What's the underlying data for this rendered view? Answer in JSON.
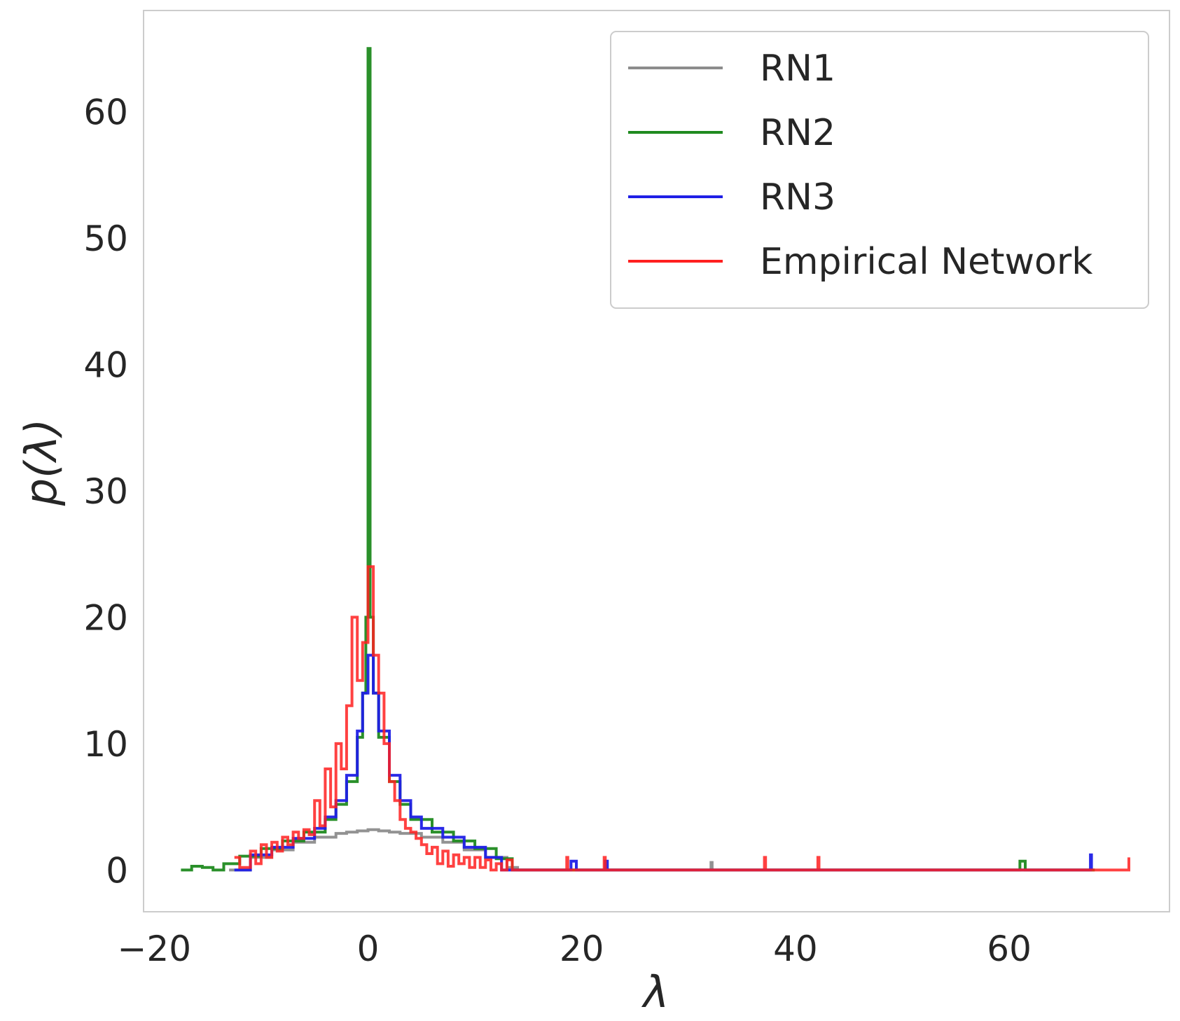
{
  "chart_data": {
    "type": "line",
    "title": "",
    "xlabel": "λ",
    "ylabel": "p(λ)",
    "xlim": [
      -21,
      75
    ],
    "ylim": [
      -3.3,
      68
    ],
    "xticks": [
      -20,
      0,
      20,
      40,
      60
    ],
    "xtick_labels": [
      "−20",
      "0",
      "20",
      "40",
      "60"
    ],
    "yticks": [
      0,
      10,
      20,
      30,
      40,
      50,
      60
    ],
    "ytick_labels": [
      "0",
      "10",
      "20",
      "30",
      "40",
      "50",
      "60"
    ],
    "grid": false,
    "legend_position": "top-right",
    "series": [
      {
        "name": "RN1",
        "color": "#8c8c8c",
        "x": [
          -13,
          -11,
          -9,
          -7,
          -5,
          -3,
          -2,
          -1,
          0,
          1,
          2,
          3,
          5,
          7,
          9,
          11,
          13,
          14,
          32,
          32.1,
          32.2,
          68
        ],
        "y": [
          0,
          1.0,
          1.6,
          2.2,
          2.6,
          2.9,
          3.0,
          3.1,
          3.2,
          3.1,
          3.0,
          2.9,
          2.6,
          2.2,
          1.6,
          1.0,
          0.2,
          0,
          0,
          0.6,
          0,
          0
        ]
      },
      {
        "name": "RN2",
        "color": "#1f8a1f",
        "x": [
          -17.5,
          -16.5,
          -15.5,
          -14.5,
          -13.5,
          -12,
          -10,
          -8,
          -6,
          -4,
          -3,
          -2,
          -1,
          -0.5,
          -0.2,
          0,
          0.2,
          0.5,
          1,
          2,
          3,
          4,
          6,
          8,
          10,
          12,
          13.5,
          60.5,
          61,
          61.5,
          68
        ],
        "y": [
          0,
          0.3,
          0.2,
          0,
          0.5,
          1.1,
          1.7,
          2.3,
          3.0,
          4.0,
          5.2,
          7.0,
          10.5,
          14,
          20,
          65,
          20,
          14,
          10.5,
          7.0,
          5.2,
          4.0,
          3.0,
          2.3,
          1.7,
          0.9,
          0,
          0,
          0.7,
          0,
          0
        ]
      },
      {
        "name": "RN3",
        "color": "#1f1fe6",
        "x": [
          -12.5,
          -11,
          -9,
          -7,
          -5,
          -4,
          -3,
          -2,
          -1,
          -0.5,
          0,
          0.5,
          1,
          2,
          3,
          4,
          5,
          7,
          9,
          11,
          12.5,
          18.5,
          19,
          19.5,
          22,
          22.2,
          22.4,
          67.5,
          67.6,
          67.7
        ],
        "y": [
          0,
          1.2,
          1.8,
          2.5,
          3.3,
          4.2,
          5.5,
          7.5,
          11,
          14,
          17,
          14,
          11,
          7.5,
          5.5,
          4.2,
          3.3,
          2.6,
          1.8,
          1.0,
          0,
          0,
          0.7,
          0,
          0,
          0.7,
          0,
          0,
          1.2,
          0
        ]
      },
      {
        "name": "Empirical Network",
        "color": "#ff2020",
        "x": [
          -12.5,
          -12,
          -11,
          -10.5,
          -10,
          -9.5,
          -9,
          -8.5,
          -8,
          -7.5,
          -7,
          -6.5,
          -6,
          -5.5,
          -5,
          -4.5,
          -4,
          -3.5,
          -3,
          -2.5,
          -2,
          -1.5,
          -1,
          -0.5,
          0,
          0.5,
          1,
          1.5,
          2,
          2.5,
          3,
          3.5,
          4,
          4.5,
          5,
          5.5,
          6,
          6.5,
          7,
          7.5,
          8,
          8.5,
          9,
          9.5,
          10,
          10.5,
          11,
          11.5,
          12,
          12.5,
          13,
          13.5,
          14,
          18.5,
          18.6,
          18.7,
          22,
          22.1,
          22.2,
          37,
          37.1,
          37.2,
          42,
          42.1,
          42.2,
          71,
          71.2
        ],
        "y": [
          1.0,
          0.2,
          1.5,
          0.5,
          2.0,
          1.0,
          2.2,
          1.5,
          2.6,
          2.0,
          3.0,
          2.5,
          3.2,
          2.8,
          5.5,
          3.5,
          8.0,
          5.0,
          10.0,
          8.0,
          13.0,
          20.0,
          15.0,
          18.0,
          24.0,
          17.0,
          14.0,
          10.0,
          7.0,
          5.5,
          4.0,
          3.3,
          3.0,
          2.5,
          2.0,
          1.3,
          1.8,
          0.5,
          1.5,
          0.3,
          1.2,
          0.5,
          1.0,
          0.2,
          1.0,
          0.2,
          0.8,
          0,
          0.5,
          0,
          0.8,
          0,
          0,
          0,
          1.0,
          0,
          0,
          1.0,
          0,
          0,
          1.0,
          0,
          0,
          1.0,
          0,
          0,
          1.0
        ]
      }
    ]
  }
}
